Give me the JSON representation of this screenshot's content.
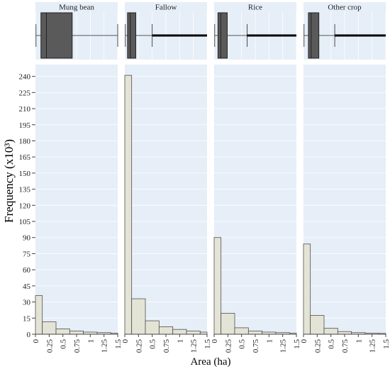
{
  "chart_data": {
    "type": "bar",
    "ylabel": "Frequency (x10³)",
    "xlabel": "Area (ha)",
    "yticks": [
      0,
      15,
      30,
      45,
      60,
      75,
      90,
      105,
      120,
      135,
      150,
      165,
      180,
      195,
      210,
      225,
      240
    ],
    "xticks": [
      "0",
      "0.25",
      "0.5",
      "0.75",
      "1",
      "1.25",
      "1.5"
    ],
    "xlim": [
      0,
      1.5
    ],
    "ylim": [
      0,
      251
    ],
    "bin_edges": [
      0,
      0.125,
      0.375,
      0.625,
      0.875,
      1.125,
      1.375,
      1.5
    ],
    "panels": [
      {
        "title": "Mung bean",
        "values": [
          36,
          11.5,
          5,
          3,
          2,
          1.5,
          1
        ],
        "boxplot": {
          "whisker_low": 0.01,
          "q1": 0.1,
          "median": 0.2,
          "q3": 0.67,
          "whisker_high": 1.5
        }
      },
      {
        "title": "Fallow",
        "values": [
          241,
          33,
          12.5,
          7,
          4.5,
          3,
          2
        ],
        "boxplot": {
          "whisker_low": 0.01,
          "q1": 0.05,
          "median": 0.1,
          "q3": 0.2,
          "whisker_high": 0.5,
          "outliers_to": 1.5
        }
      },
      {
        "title": "Rice",
        "values": [
          90,
          19.5,
          6,
          3,
          2,
          1.5,
          1
        ],
        "boxplot": {
          "whisker_low": 0.01,
          "q1": 0.07,
          "median": 0.12,
          "q3": 0.24,
          "whisker_high": 0.6,
          "outliers_to": 1.5
        }
      },
      {
        "title": "Other crop",
        "values": [
          84,
          17.5,
          5.5,
          2.5,
          1.5,
          1,
          0.8
        ],
        "boxplot": {
          "whisker_low": 0.01,
          "q1": 0.09,
          "median": 0.14,
          "q3": 0.28,
          "whisker_high": 0.57,
          "outliers_to": 1.5
        }
      }
    ],
    "colors": {
      "plot_bg": "#e6eef8",
      "strip_bg": "#e6eef8",
      "grid": "#ffffff",
      "bar_fill": "#e4e4d6",
      "bar_stroke": "#505050",
      "box_fill": "#5a5a5a",
      "box_stroke": "#222222",
      "ylabel_color": "#1d3f6e",
      "text": "#222222"
    }
  }
}
